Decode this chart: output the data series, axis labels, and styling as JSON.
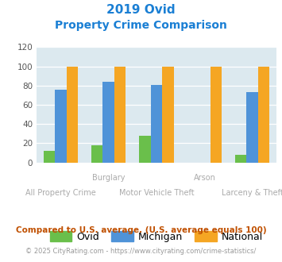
{
  "title_line1": "2019 Ovid",
  "title_line2": "Property Crime Comparison",
  "categories": [
    "All Property Crime",
    "Burglary",
    "Motor Vehicle Theft",
    "Arson",
    "Larceny & Theft"
  ],
  "top_labels": [
    "",
    "Burglary",
    "",
    "Arson",
    ""
  ],
  "bot_labels": [
    "All Property Crime",
    "",
    "Motor Vehicle Theft",
    "",
    "Larceny & Theft"
  ],
  "ovid": [
    12,
    18,
    28,
    0,
    8
  ],
  "michigan": [
    76,
    84,
    81,
    0,
    73
  ],
  "national": [
    100,
    100,
    100,
    100,
    100
  ],
  "ovid_color": "#6abf4b",
  "michigan_color": "#4f93d8",
  "national_color": "#f5a623",
  "bg_color": "#dce9ef",
  "ylim": [
    0,
    120
  ],
  "yticks": [
    0,
    20,
    40,
    60,
    80,
    100,
    120
  ],
  "title_color": "#1a7fd4",
  "footnote1": "Compared to U.S. average. (U.S. average equals 100)",
  "footnote2": "© 2025 CityRating.com - https://www.cityrating.com/crime-statistics/",
  "footnote1_color": "#c05000",
  "footnote2_color": "#999999",
  "footnote2_link_color": "#2288cc"
}
